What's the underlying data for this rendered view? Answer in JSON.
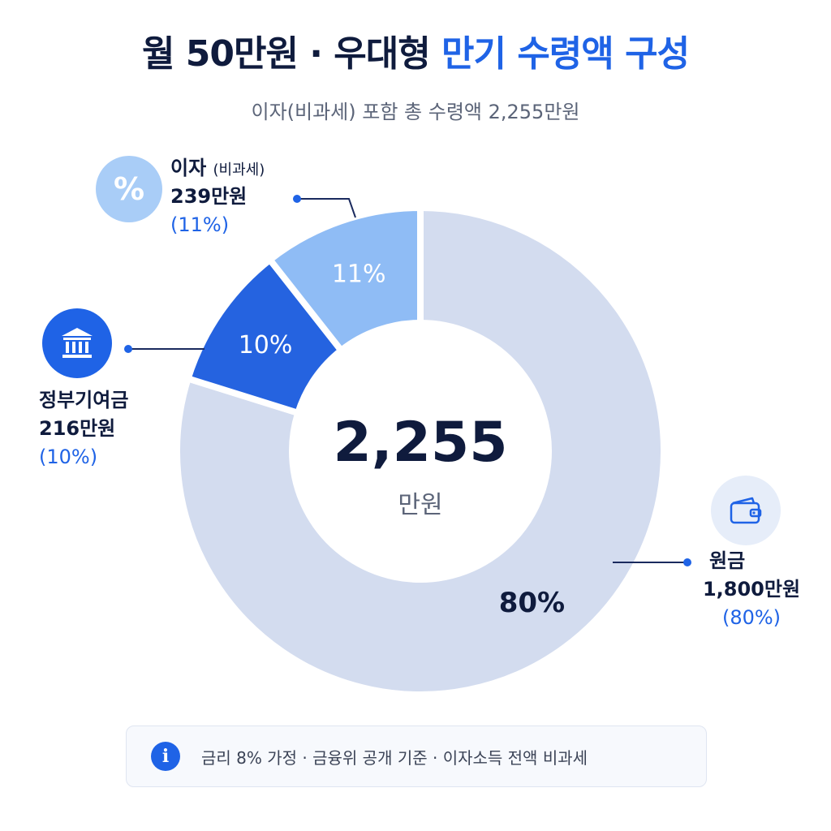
{
  "header": {
    "title_main": "월 50만원 · 우대형 ",
    "title_accent": "만기 수령액 구성",
    "subtitle": "이자(비과세) 포함 총 수령액 2,255만원"
  },
  "center": {
    "value": "2,255",
    "unit": "만원"
  },
  "chart_data": {
    "type": "pie",
    "categories": [
      "원금",
      "정부기여금",
      "이자"
    ],
    "values": [
      1800,
      216,
      239
    ],
    "percent_labels": [
      "80%",
      "10%",
      "11%"
    ],
    "total": 2255,
    "unit": "만원",
    "colors": [
      "#d3dcef",
      "#2563e0",
      "#8fbcf5"
    ],
    "label_colors": [
      "#0f1b3d",
      "#ffffff",
      "#ffffff"
    ]
  },
  "labels": {
    "interest": {
      "name": "이자",
      "note": "(비과세)",
      "amount": "239만원",
      "pct": "(11%)",
      "icon": "percent-icon",
      "icon_text": "%"
    },
    "gov": {
      "name": "정부기여금",
      "amount": "216만원",
      "pct": "(10%)",
      "icon": "bank-icon"
    },
    "principal": {
      "name": "원금",
      "amount": "1,800만원",
      "pct": "(80%)",
      "icon": "wallet-icon"
    }
  },
  "footer": {
    "icon": "info-icon",
    "info_glyph": "i",
    "text": "금리 8% 가정 · 금융위 공개 기준 · 이자소득 전액 비과세"
  }
}
